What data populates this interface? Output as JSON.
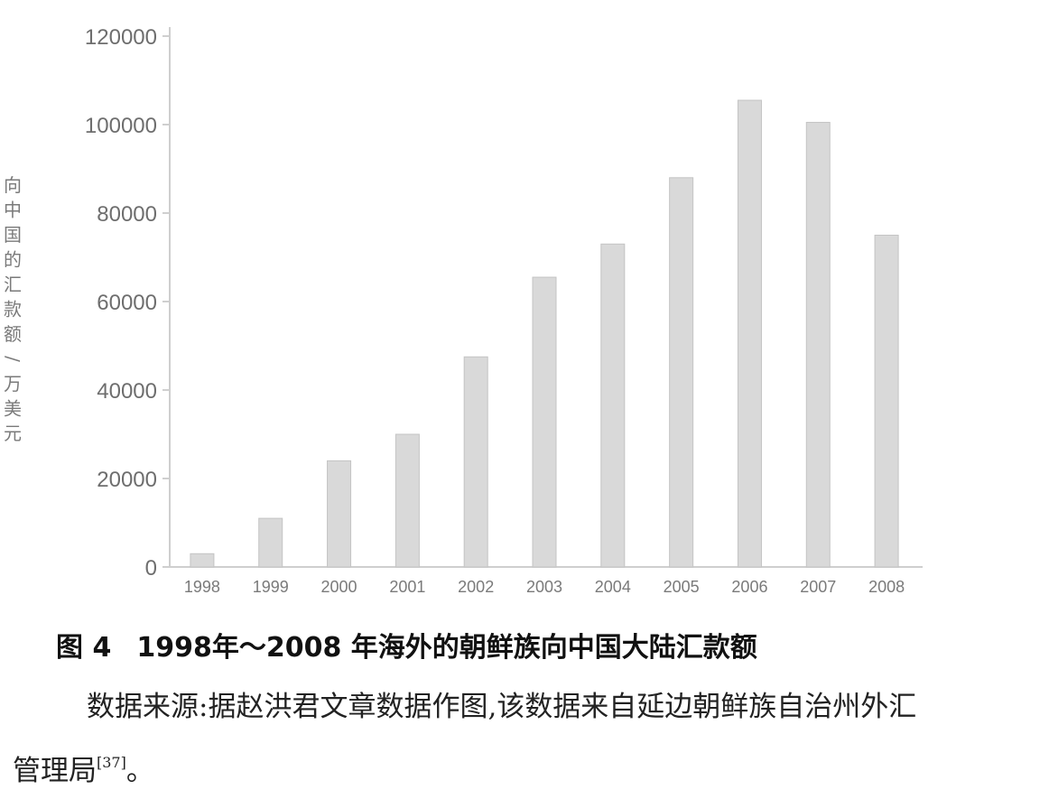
{
  "chart_data": {
    "type": "bar",
    "categories": [
      "1998",
      "1999",
      "2000",
      "2001",
      "2002",
      "2003",
      "2004",
      "2005",
      "2006",
      "2007",
      "2008"
    ],
    "values": [
      3000,
      11000,
      24000,
      30000,
      47500,
      65500,
      73000,
      88000,
      105500,
      100500,
      75000
    ],
    "ylim": [
      0,
      120000
    ],
    "yticks": [
      "0",
      "20000",
      "40000",
      "60000",
      "80000",
      "100000",
      "120000"
    ],
    "ylabel": "向中国的汇款额/万美元",
    "xlabel": "",
    "grid": false,
    "bar_color": "#d9d9d9",
    "bar_edge_color": "#c4c4c4"
  },
  "caption": {
    "figure_number": "图 4",
    "title": "1998年～2008 年海外的朝鲜族向中国大陆汇款额"
  },
  "source_note": {
    "text": "数据来源:据赵洪君文章数据作图,该数据来自延边朝鲜族自治州外汇管理局",
    "ref": "[37]",
    "end": "。"
  }
}
